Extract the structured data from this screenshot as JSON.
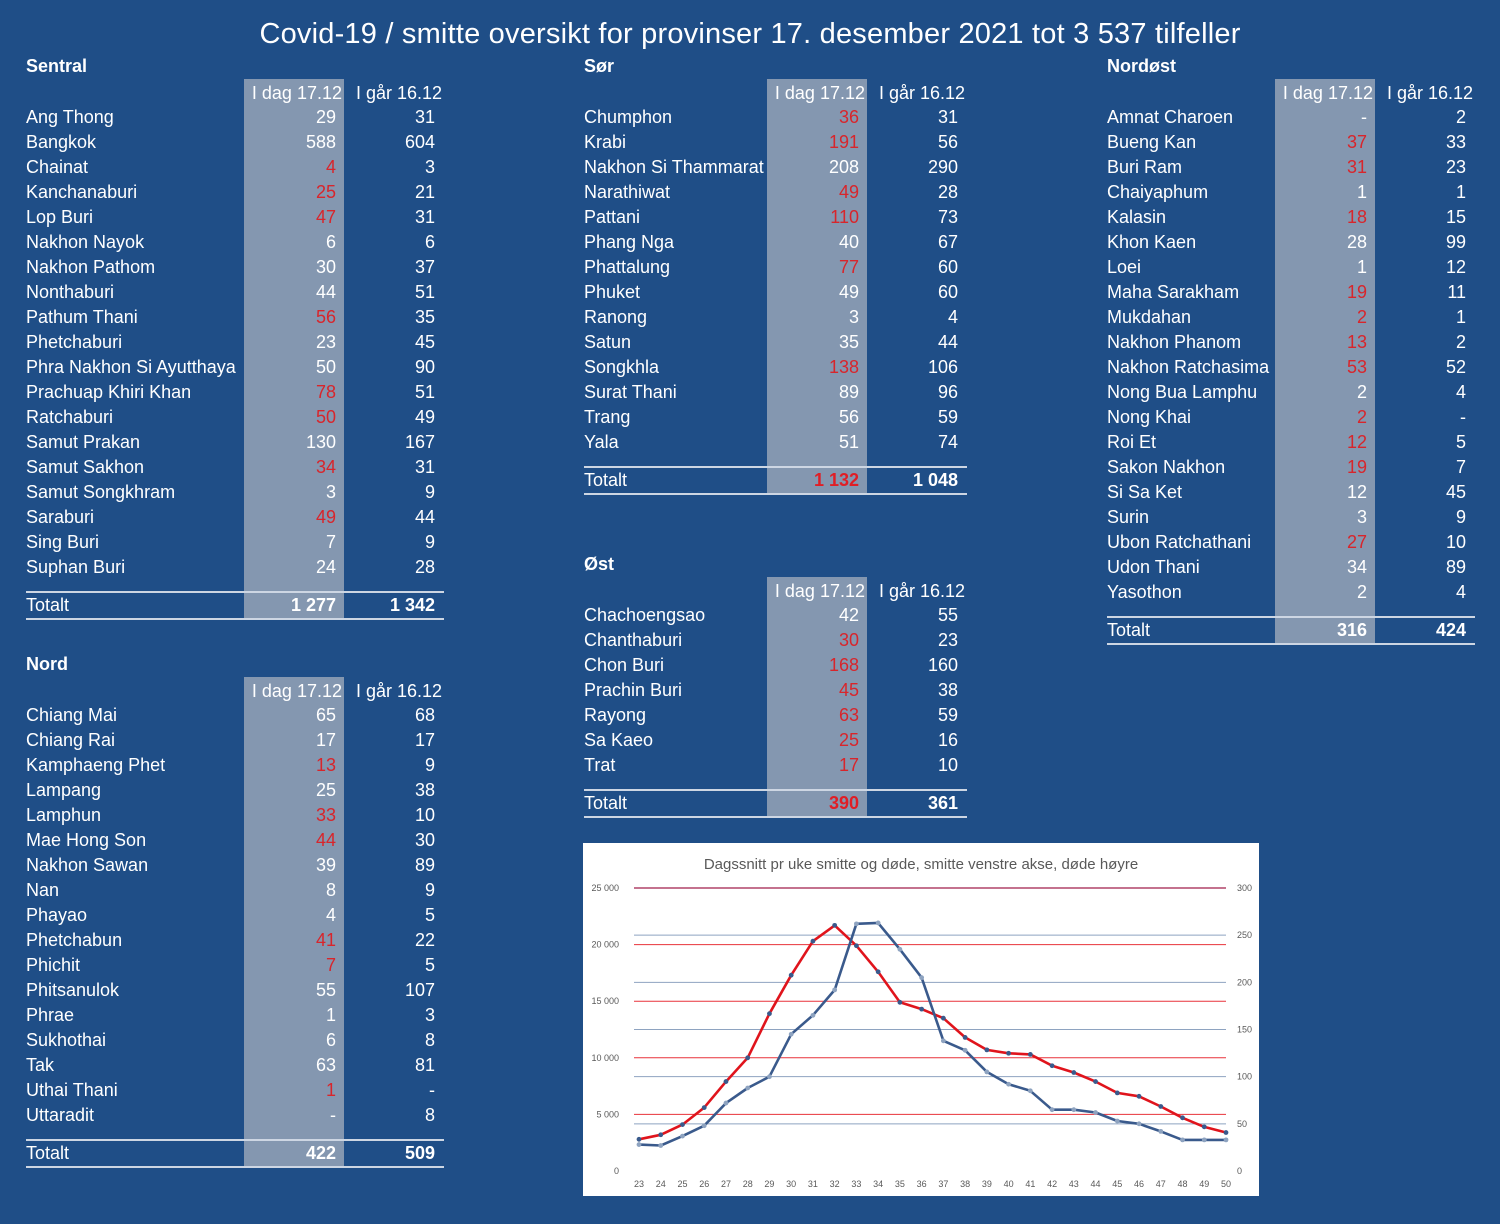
{
  "title": "Covid-19 / smitte oversikt for provinser 17. desember 2021 tot 3 537 tilfeller",
  "header_today": "I dag 17.12",
  "header_prev": "I går 16.12",
  "total_label": "Totalt",
  "colors": {
    "background": "#1f4e87",
    "today_column": "#8497b0",
    "increase_red": "#d8252b"
  },
  "regions": {
    "sentral": {
      "name": "Sentral",
      "rows": [
        {
          "name": "Ang Thong",
          "today": "29",
          "prev": "31",
          "up": false
        },
        {
          "name": "Bangkok",
          "today": "588",
          "prev": "604",
          "up": false
        },
        {
          "name": "Chainat",
          "today": "4",
          "prev": "3",
          "up": true
        },
        {
          "name": "Kanchanaburi",
          "today": "25",
          "prev": "21",
          "up": true
        },
        {
          "name": "Lop Buri",
          "today": "47",
          "prev": "31",
          "up": true
        },
        {
          "name": "Nakhon Nayok",
          "today": "6",
          "prev": "6",
          "up": false
        },
        {
          "name": "Nakhon Pathom",
          "today": "30",
          "prev": "37",
          "up": false
        },
        {
          "name": "Nonthaburi",
          "today": "44",
          "prev": "51",
          "up": false
        },
        {
          "name": "Pathum Thani",
          "today": "56",
          "prev": "35",
          "up": true
        },
        {
          "name": "Phetchaburi",
          "today": "23",
          "prev": "45",
          "up": false
        },
        {
          "name": "Phra Nakhon Si Ayutthaya",
          "today": "50",
          "prev": "90",
          "up": false
        },
        {
          "name": "Prachuap Khiri Khan",
          "today": "78",
          "prev": "51",
          "up": true
        },
        {
          "name": "Ratchaburi",
          "today": "50",
          "prev": "49",
          "up": true
        },
        {
          "name": "Samut Prakan",
          "today": "130",
          "prev": "167",
          "up": false
        },
        {
          "name": "Samut Sakhon",
          "today": "34",
          "prev": "31",
          "up": true
        },
        {
          "name": "Samut Songkhram",
          "today": "3",
          "prev": "9",
          "up": false
        },
        {
          "name": "Saraburi",
          "today": "49",
          "prev": "44",
          "up": true
        },
        {
          "name": "Sing Buri",
          "today": "7",
          "prev": "9",
          "up": false
        },
        {
          "name": "Suphan Buri",
          "today": "24",
          "prev": "28",
          "up": false
        }
      ],
      "total_today": "1 277",
      "total_prev": "1 342",
      "total_up": false
    },
    "nord": {
      "name": "Nord",
      "rows": [
        {
          "name": "Chiang Mai",
          "today": "65",
          "prev": "68",
          "up": false
        },
        {
          "name": "Chiang Rai",
          "today": "17",
          "prev": "17",
          "up": false
        },
        {
          "name": "Kamphaeng Phet",
          "today": "13",
          "prev": "9",
          "up": true
        },
        {
          "name": "Lampang",
          "today": "25",
          "prev": "38",
          "up": false
        },
        {
          "name": "Lamphun",
          "today": "33",
          "prev": "10",
          "up": true
        },
        {
          "name": "Mae Hong Son",
          "today": "44",
          "prev": "30",
          "up": true
        },
        {
          "name": "Nakhon Sawan",
          "today": "39",
          "prev": "89",
          "up": false
        },
        {
          "name": "Nan",
          "today": "8",
          "prev": "9",
          "up": false
        },
        {
          "name": "Phayao",
          "today": "4",
          "prev": "5",
          "up": false
        },
        {
          "name": "Phetchabun",
          "today": "41",
          "prev": "22",
          "up": true
        },
        {
          "name": "Phichit",
          "today": "7",
          "prev": "5",
          "up": true
        },
        {
          "name": "Phitsanulok",
          "today": "55",
          "prev": "107",
          "up": false
        },
        {
          "name": "Phrae",
          "today": "1",
          "prev": "3",
          "up": false
        },
        {
          "name": "Sukhothai",
          "today": "6",
          "prev": "8",
          "up": false
        },
        {
          "name": "Tak",
          "today": "63",
          "prev": "81",
          "up": false
        },
        {
          "name": "Uthai Thani",
          "today": "1",
          "prev": "-",
          "up": true
        },
        {
          "name": "Uttaradit",
          "today": "-",
          "prev": "8",
          "up": false
        }
      ],
      "total_today": "422",
      "total_prev": "509",
      "total_up": false
    },
    "sor": {
      "name": "Sør",
      "rows": [
        {
          "name": "Chumphon",
          "today": "36",
          "prev": "31",
          "up": true
        },
        {
          "name": "Krabi",
          "today": "191",
          "prev": "56",
          "up": true
        },
        {
          "name": "Nakhon Si Thammarat",
          "today": "208",
          "prev": "290",
          "up": false
        },
        {
          "name": "Narathiwat",
          "today": "49",
          "prev": "28",
          "up": true
        },
        {
          "name": "Pattani",
          "today": "110",
          "prev": "73",
          "up": true
        },
        {
          "name": "Phang Nga",
          "today": "40",
          "prev": "67",
          "up": false
        },
        {
          "name": "Phattalung",
          "today": "77",
          "prev": "60",
          "up": true
        },
        {
          "name": "Phuket",
          "today": "49",
          "prev": "60",
          "up": false
        },
        {
          "name": "Ranong",
          "today": "3",
          "prev": "4",
          "up": false
        },
        {
          "name": "Satun",
          "today": "35",
          "prev": "44",
          "up": false
        },
        {
          "name": "Songkhla",
          "today": "138",
          "prev": "106",
          "up": true
        },
        {
          "name": "Surat Thani",
          "today": "89",
          "prev": "96",
          "up": false
        },
        {
          "name": "Trang",
          "today": "56",
          "prev": "59",
          "up": false
        },
        {
          "name": "Yala",
          "today": "51",
          "prev": "74",
          "up": false
        }
      ],
      "total_today": "1 132",
      "total_prev": "1 048",
      "total_up": true
    },
    "ost": {
      "name": "Øst",
      "rows": [
        {
          "name": "Chachoengsao",
          "today": "42",
          "prev": "55",
          "up": false
        },
        {
          "name": "Chanthaburi",
          "today": "30",
          "prev": "23",
          "up": true
        },
        {
          "name": "Chon Buri",
          "today": "168",
          "prev": "160",
          "up": true
        },
        {
          "name": "Prachin Buri",
          "today": "45",
          "prev": "38",
          "up": true
        },
        {
          "name": "Rayong",
          "today": "63",
          "prev": "59",
          "up": true
        },
        {
          "name": "Sa Kaeo",
          "today": "25",
          "prev": "16",
          "up": true
        },
        {
          "name": "Trat",
          "today": "17",
          "prev": "10",
          "up": true
        }
      ],
      "total_today": "390",
      "total_prev": "361",
      "total_up": true
    },
    "nordost": {
      "name": "Nordøst",
      "rows": [
        {
          "name": "Amnat Charoen",
          "today": "-",
          "prev": "2",
          "up": false
        },
        {
          "name": "Bueng Kan",
          "today": "37",
          "prev": "33",
          "up": true
        },
        {
          "name": "Buri Ram",
          "today": "31",
          "prev": "23",
          "up": true
        },
        {
          "name": "Chaiyaphum",
          "today": "1",
          "prev": "1",
          "up": false
        },
        {
          "name": "Kalasin",
          "today": "18",
          "prev": "15",
          "up": true
        },
        {
          "name": "Khon Kaen",
          "today": "28",
          "prev": "99",
          "up": false
        },
        {
          "name": "Loei",
          "today": "1",
          "prev": "12",
          "up": false
        },
        {
          "name": "Maha Sarakham",
          "today": "19",
          "prev": "11",
          "up": true
        },
        {
          "name": "Mukdahan",
          "today": "2",
          "prev": "1",
          "up": true
        },
        {
          "name": "Nakhon Phanom",
          "today": "13",
          "prev": "2",
          "up": true
        },
        {
          "name": "Nakhon Ratchasima",
          "today": "53",
          "prev": "52",
          "up": true
        },
        {
          "name": "Nong Bua Lamphu",
          "today": "2",
          "prev": "4",
          "up": false
        },
        {
          "name": "Nong Khai",
          "today": "2",
          "prev": "-",
          "up": true
        },
        {
          "name": "Roi Et",
          "today": "12",
          "prev": "5",
          "up": true
        },
        {
          "name": "Sakon Nakhon",
          "today": "19",
          "prev": "7",
          "up": true
        },
        {
          "name": "Si Sa Ket",
          "today": "12",
          "prev": "45",
          "up": false
        },
        {
          "name": "Surin",
          "today": "3",
          "prev": "9",
          "up": false
        },
        {
          "name": "Ubon Ratchathani",
          "today": "27",
          "prev": "10",
          "up": true
        },
        {
          "name": "Udon Thani",
          "today": "34",
          "prev": "89",
          "up": false
        },
        {
          "name": "Yasothon",
          "today": "2",
          "prev": "4",
          "up": false
        }
      ],
      "total_today": "316",
      "total_prev": "424",
      "total_up": false
    }
  },
  "chart_data": {
    "type": "line",
    "title": "Dagssnitt pr uke smitte og døde, smitte venstre akse, døde høyre",
    "x": [
      23,
      24,
      25,
      26,
      27,
      28,
      29,
      30,
      31,
      32,
      33,
      34,
      35,
      36,
      37,
      38,
      39,
      40,
      41,
      42,
      43,
      44,
      45,
      46,
      47,
      48,
      49,
      50
    ],
    "y_left_ticks": [
      "0",
      "5 000",
      "10 000",
      "15 000",
      "20 000",
      "25 000"
    ],
    "y_left_lim": [
      0,
      25000
    ],
    "y_right_ticks": [
      "0",
      "50",
      "100",
      "150",
      "200",
      "250",
      "300"
    ],
    "y_right_lim": [
      0,
      300
    ],
    "grid": true,
    "series": [
      {
        "axis": "left",
        "color": "#e0141c",
        "values": [
          2800,
          3200,
          4100,
          5600,
          7900,
          10000,
          13900,
          17300,
          20300,
          21700,
          19900,
          17600,
          14900,
          14300,
          13500,
          11800,
          10700,
          10400,
          10300,
          9300,
          8700,
          7900,
          6900,
          6600,
          5700,
          4700,
          3900,
          3400
        ]
      },
      {
        "axis": "right",
        "color": "#3a5a8c",
        "values": [
          28,
          27,
          37,
          48,
          72,
          88,
          100,
          145,
          165,
          192,
          262,
          263,
          235,
          205,
          138,
          128,
          105,
          92,
          85,
          65,
          65,
          62,
          53,
          50,
          42,
          33,
          33,
          33
        ]
      }
    ]
  }
}
